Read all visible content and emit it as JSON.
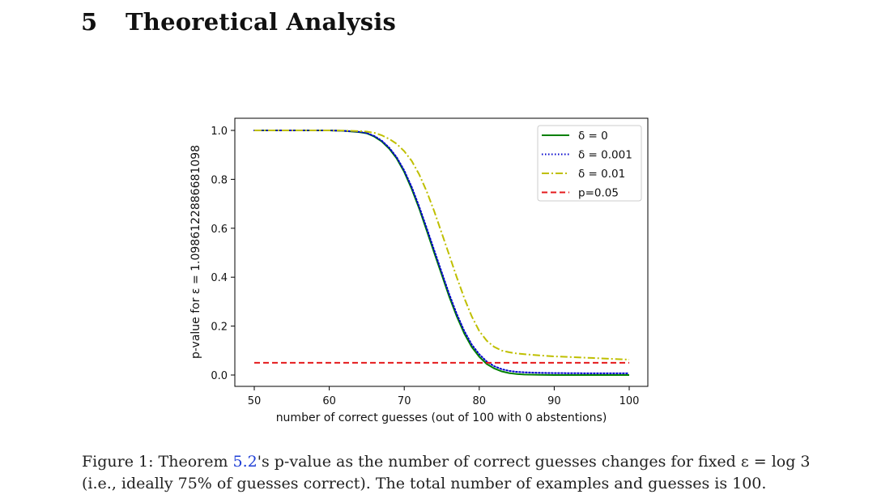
{
  "section": {
    "number": "5",
    "title": "Theoretical Analysis"
  },
  "caption": {
    "prefix": "Figure 1:  Theorem ",
    "ref": "5.2",
    "text": "'s p-value as the number of correct guesses changes for fixed ε = log 3 (i.e., ideally 75% of guesses correct). The total number of examples and guesses is 100."
  },
  "chart_data": {
    "type": "line",
    "xlabel": "number of correct guesses (out of 100 with 0 abstentions)",
    "ylabel": "p-value for ε = 1.0986122886681098",
    "xlim": [
      50,
      100
    ],
    "ylim": [
      0.0,
      1.0
    ],
    "xticks": [
      50,
      60,
      70,
      80,
      90,
      100
    ],
    "yticks": [
      0.0,
      0.2,
      0.4,
      0.6,
      0.8,
      1.0
    ],
    "x": [
      50,
      55,
      60,
      62,
      64,
      65,
      66,
      67,
      68,
      69,
      70,
      71,
      72,
      73,
      74,
      75,
      76,
      77,
      78,
      79,
      80,
      81,
      82,
      83,
      84,
      85,
      86,
      88,
      90,
      95,
      100
    ],
    "series": [
      {
        "name": "δ = 0",
        "color": "#008000",
        "style": "solid",
        "values": [
          1.0,
          1.0,
          1.0,
          0.998,
          0.993,
          0.988,
          0.975,
          0.955,
          0.925,
          0.885,
          0.83,
          0.76,
          0.68,
          0.59,
          0.5,
          0.41,
          0.32,
          0.24,
          0.17,
          0.115,
          0.075,
          0.045,
          0.027,
          0.015,
          0.008,
          0.004,
          0.002,
          0.001,
          0.0,
          0.0,
          0.0
        ]
      },
      {
        "name": "δ = 0.001",
        "color": "#0000cc",
        "style": "dotted",
        "values": [
          1.0,
          1.0,
          1.0,
          0.998,
          0.994,
          0.989,
          0.977,
          0.958,
          0.929,
          0.89,
          0.836,
          0.768,
          0.688,
          0.6,
          0.51,
          0.42,
          0.33,
          0.25,
          0.18,
          0.125,
          0.085,
          0.055,
          0.036,
          0.024,
          0.017,
          0.013,
          0.011,
          0.009,
          0.008,
          0.007,
          0.007
        ]
      },
      {
        "name": "δ = 0.01",
        "color": "#bfbf00",
        "style": "dashdot",
        "values": [
          1.0,
          1.0,
          1.0,
          0.999,
          0.997,
          0.995,
          0.99,
          0.98,
          0.965,
          0.945,
          0.915,
          0.875,
          0.82,
          0.75,
          0.67,
          0.58,
          0.49,
          0.4,
          0.315,
          0.24,
          0.18,
          0.14,
          0.115,
          0.1,
          0.093,
          0.088,
          0.085,
          0.08,
          0.076,
          0.07,
          0.063
        ]
      },
      {
        "name": "p=0.05",
        "color": "#e41a1c",
        "style": "dashed",
        "values": [
          0.05,
          0.05,
          0.05,
          0.05,
          0.05,
          0.05,
          0.05,
          0.05,
          0.05,
          0.05,
          0.05,
          0.05,
          0.05,
          0.05,
          0.05,
          0.05,
          0.05,
          0.05,
          0.05,
          0.05,
          0.05,
          0.05,
          0.05,
          0.05,
          0.05,
          0.05,
          0.05,
          0.05,
          0.05,
          0.05,
          0.05
        ]
      }
    ],
    "legend": {
      "position": "top-right"
    },
    "grid": false
  }
}
